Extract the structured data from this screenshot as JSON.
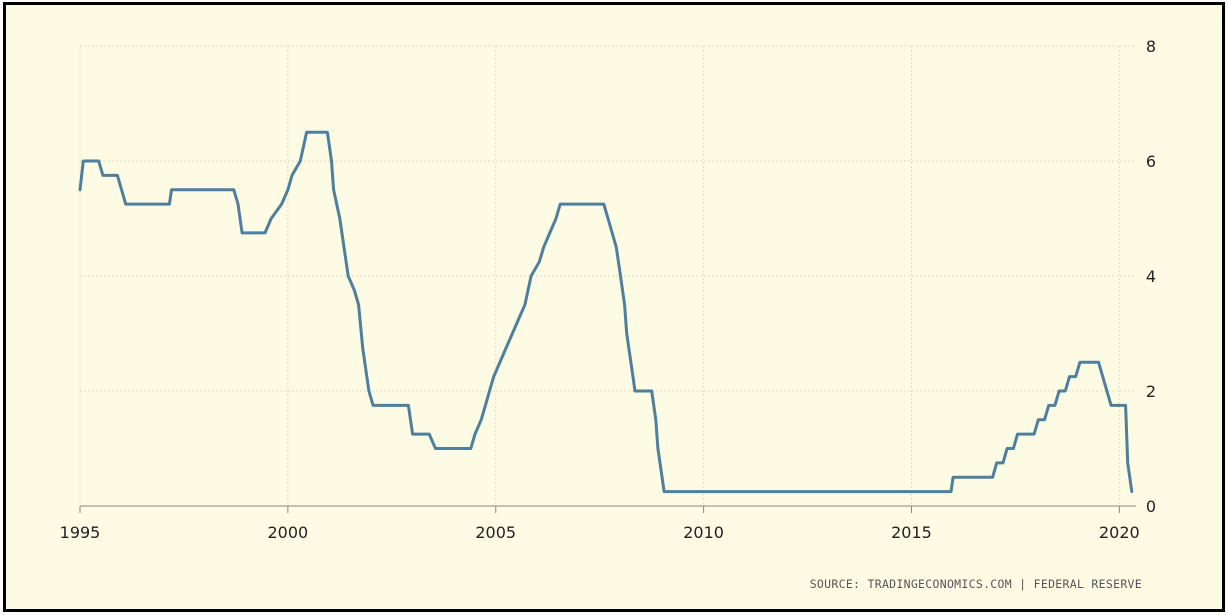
{
  "chart_data": {
    "type": "line",
    "title": "",
    "xlabel": "",
    "ylabel": "",
    "xlim": [
      1995,
      2020.4
    ],
    "ylim": [
      0,
      8
    ],
    "x_ticks": [
      1995,
      2000,
      2005,
      2010,
      2015,
      2020
    ],
    "y_ticks": [
      0,
      2,
      4,
      6,
      8
    ],
    "grid": true,
    "y_axis_side": "right",
    "source": "SOURCE: TRADINGECONOMICS.COM | FEDERAL RESERVE",
    "series": [
      {
        "color": "#4f7f9e",
        "points": [
          [
            1995.0,
            5.5
          ],
          [
            1995.08,
            6.0
          ],
          [
            1995.45,
            6.0
          ],
          [
            1995.55,
            5.75
          ],
          [
            1995.9,
            5.75
          ],
          [
            1996.0,
            5.5
          ],
          [
            1996.1,
            5.25
          ],
          [
            1997.15,
            5.25
          ],
          [
            1997.2,
            5.5
          ],
          [
            1998.7,
            5.5
          ],
          [
            1998.8,
            5.25
          ],
          [
            1998.9,
            4.75
          ],
          [
            1999.45,
            4.75
          ],
          [
            1999.6,
            5.0
          ],
          [
            1999.85,
            5.25
          ],
          [
            2000.0,
            5.5
          ],
          [
            2000.1,
            5.75
          ],
          [
            2000.3,
            6.0
          ],
          [
            2000.45,
            6.5
          ],
          [
            2000.95,
            6.5
          ],
          [
            2001.05,
            6.0
          ],
          [
            2001.1,
            5.5
          ],
          [
            2001.25,
            5.0
          ],
          [
            2001.35,
            4.5
          ],
          [
            2001.45,
            4.0
          ],
          [
            2001.6,
            3.75
          ],
          [
            2001.7,
            3.5
          ],
          [
            2001.8,
            2.75
          ],
          [
            2001.95,
            2.0
          ],
          [
            2002.05,
            1.75
          ],
          [
            2002.9,
            1.75
          ],
          [
            2003.0,
            1.25
          ],
          [
            2003.4,
            1.25
          ],
          [
            2003.55,
            1.0
          ],
          [
            2004.4,
            1.0
          ],
          [
            2004.5,
            1.25
          ],
          [
            2004.65,
            1.5
          ],
          [
            2004.75,
            1.75
          ],
          [
            2004.85,
            2.0
          ],
          [
            2004.95,
            2.25
          ],
          [
            2005.1,
            2.5
          ],
          [
            2005.25,
            2.75
          ],
          [
            2005.4,
            3.0
          ],
          [
            2005.55,
            3.25
          ],
          [
            2005.7,
            3.5
          ],
          [
            2005.85,
            4.0
          ],
          [
            2006.05,
            4.25
          ],
          [
            2006.15,
            4.5
          ],
          [
            2006.3,
            4.75
          ],
          [
            2006.45,
            5.0
          ],
          [
            2006.55,
            5.25
          ],
          [
            2007.6,
            5.25
          ],
          [
            2007.7,
            5.0
          ],
          [
            2007.8,
            4.75
          ],
          [
            2007.9,
            4.5
          ],
          [
            2008.0,
            4.0
          ],
          [
            2008.1,
            3.5
          ],
          [
            2008.15,
            3.0
          ],
          [
            2008.25,
            2.5
          ],
          [
            2008.35,
            2.0
          ],
          [
            2008.75,
            2.0
          ],
          [
            2008.85,
            1.5
          ],
          [
            2008.9,
            1.0
          ],
          [
            2008.95,
            0.75
          ],
          [
            2009.05,
            0.25
          ],
          [
            2015.95,
            0.25
          ],
          [
            2016.0,
            0.5
          ],
          [
            2016.95,
            0.5
          ],
          [
            2017.05,
            0.75
          ],
          [
            2017.2,
            0.75
          ],
          [
            2017.3,
            1.0
          ],
          [
            2017.45,
            1.0
          ],
          [
            2017.55,
            1.25
          ],
          [
            2017.95,
            1.25
          ],
          [
            2018.05,
            1.5
          ],
          [
            2018.2,
            1.5
          ],
          [
            2018.3,
            1.75
          ],
          [
            2018.45,
            1.75
          ],
          [
            2018.55,
            2.0
          ],
          [
            2018.7,
            2.0
          ],
          [
            2018.8,
            2.25
          ],
          [
            2018.95,
            2.25
          ],
          [
            2019.05,
            2.5
          ],
          [
            2019.5,
            2.5
          ],
          [
            2019.6,
            2.25
          ],
          [
            2019.7,
            2.0
          ],
          [
            2019.8,
            1.75
          ],
          [
            2020.15,
            1.75
          ],
          [
            2020.2,
            0.75
          ],
          [
            2020.3,
            0.25
          ]
        ]
      }
    ]
  }
}
